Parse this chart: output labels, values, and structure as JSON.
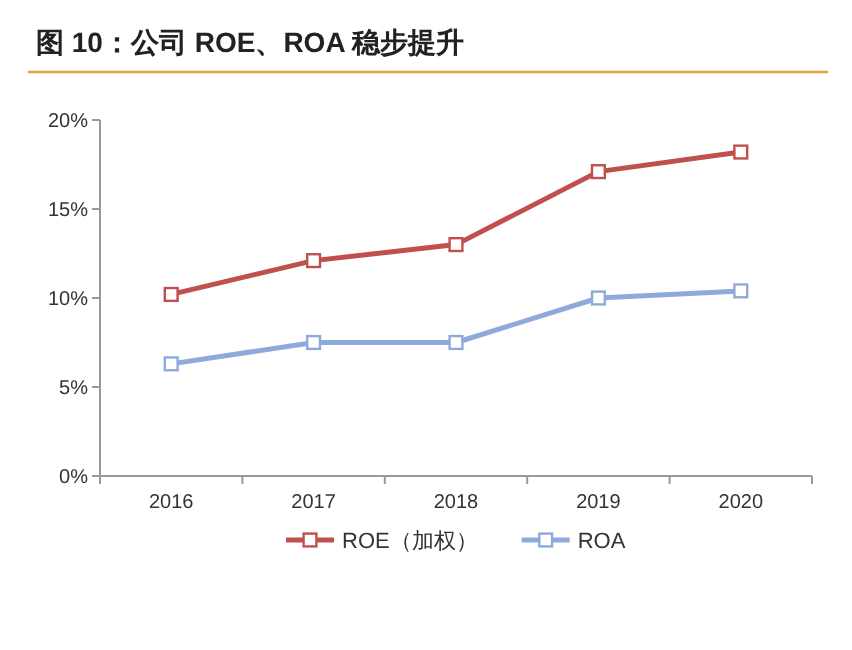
{
  "chart_data": {
    "type": "line",
    "title": "图 10：公司 ROE、ROA 稳步提升",
    "categories": [
      "2016",
      "2017",
      "2018",
      "2019",
      "2020"
    ],
    "series": [
      {
        "name": "ROE（加权）",
        "color": "#c0504d",
        "values": [
          10.2,
          12.1,
          13.0,
          17.1,
          18.2
        ]
      },
      {
        "name": "ROA",
        "color": "#8eaadb",
        "values": [
          6.3,
          7.5,
          7.5,
          10.0,
          10.4
        ]
      }
    ],
    "ylim": [
      0,
      20
    ],
    "yticks": [
      {
        "value": 0,
        "label": "0%"
      },
      {
        "value": 5,
        "label": "5%"
      },
      {
        "value": 10,
        "label": "10%"
      },
      {
        "value": 15,
        "label": "15%"
      },
      {
        "value": 20,
        "label": "20%"
      }
    ],
    "marker": "square",
    "legend": "bottom",
    "grid": false
  }
}
